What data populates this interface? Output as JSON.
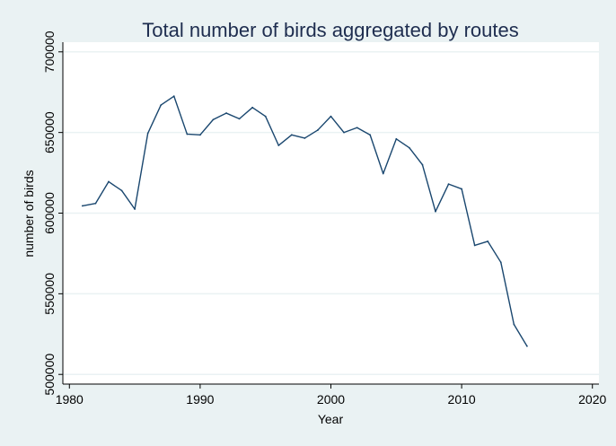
{
  "chart_data": {
    "type": "line",
    "title": "Total number of birds aggregated by routes",
    "xlabel": "Year",
    "ylabel": "number of birds",
    "xlim": [
      1979.5,
      2020.5
    ],
    "ylim": [
      494000,
      706000
    ],
    "xticks": [
      "1980",
      "1990",
      "2000",
      "2010",
      "2020"
    ],
    "yticks": [
      "500000",
      "550000",
      "600000",
      "650000",
      "700000"
    ],
    "grid": true,
    "colors": {
      "background": "#eaf2f3",
      "plot_background": "#ffffff",
      "grid": "#eaf2f3",
      "line": "#1a476f",
      "title": "#1e2d4f"
    },
    "series": [
      {
        "x": [
          1981,
          1982,
          1983,
          1984,
          1985,
          1986,
          1987,
          1988,
          1989,
          1990,
          1991,
          1992,
          1993,
          1994,
          1995,
          1996,
          1997,
          1998,
          1999,
          2000,
          2001,
          2002,
          2003,
          2004,
          2005,
          2006,
          2007,
          2008,
          2009,
          2010,
          2011,
          2012,
          2013,
          2014,
          2015
        ],
        "y": [
          604500,
          606000,
          619500,
          614000,
          602500,
          649500,
          667000,
          672500,
          649000,
          648500,
          658000,
          662000,
          658500,
          665500,
          660000,
          642000,
          648500,
          646500,
          651500,
          660000,
          650000,
          653000,
          648500,
          624500,
          646000,
          640500,
          630000,
          601000,
          618000,
          615000,
          580000,
          582500,
          569500,
          531000,
          517500
        ]
      }
    ]
  }
}
